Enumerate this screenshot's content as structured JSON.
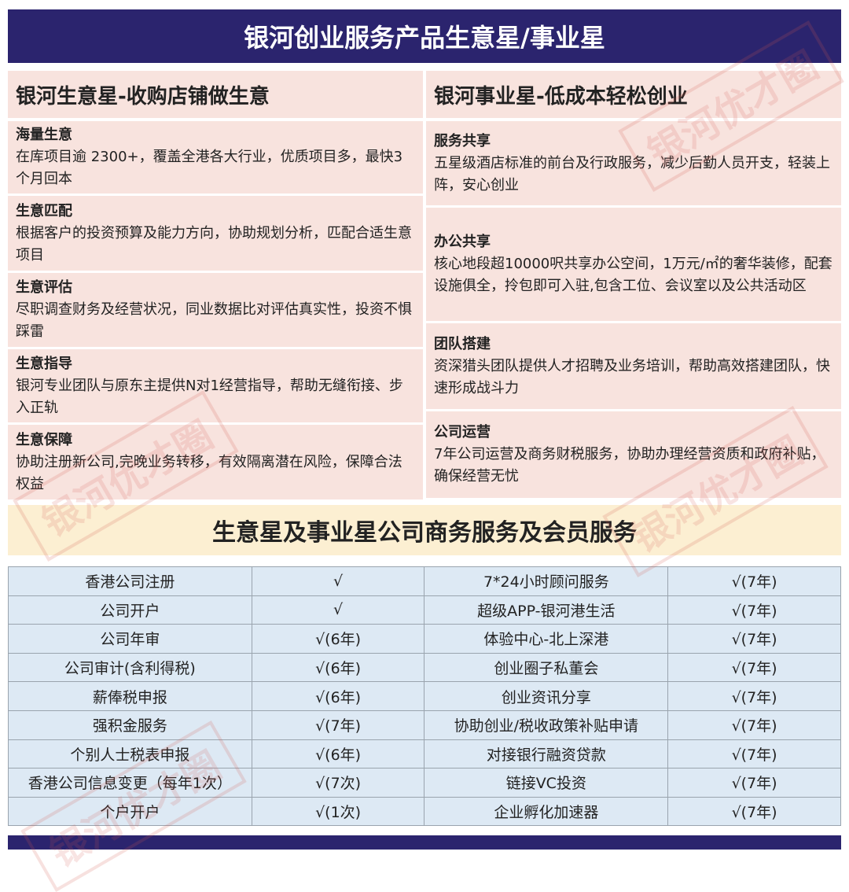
{
  "header": {
    "title": "银河创业服务产品生意星/事业星"
  },
  "left": {
    "title": "银河生意星-收购店铺做生意",
    "items": [
      {
        "title": "海量生意",
        "desc": "在库项目逾 2300+，覆盖全港各大行业，优质项目多，最快3个月回本"
      },
      {
        "title": "生意匹配",
        "desc": "根据客户的投资预算及能力方向，协助规划分析，匹配合适生意项目"
      },
      {
        "title": "生意评估",
        "desc": "尽职调查财务及经营状况，同业数据比对评估真实性，投资不惧踩雷"
      },
      {
        "title": "生意指导",
        "desc": "银河专业团队与原东主提供N对1经营指导，帮助无缝衔接、步入正轨"
      },
      {
        "title": "生意保障",
        "desc": "协助注册新公司,完晚业务转移，有效隔离潜在风险，保障合法权益"
      }
    ]
  },
  "right": {
    "title": "银河事业星-低成本轻松创业",
    "items": [
      {
        "title": "服务共享",
        "desc": "五星级酒店标准的前台及行政服务，减少后勤人员开支，轻装上阵，安心创业"
      },
      {
        "title": "办公共享",
        "desc": "核心地段超10000呎共享办公空间，1万元/㎡的奢华装修，配套设施俱全，拎包即可入驻,包含工位、会议室以及公共活动区"
      },
      {
        "title": "团队搭建",
        "desc": "资深猎头团队提供人才招聘及业务培训，帮助高效搭建团队，快速形成战斗力"
      },
      {
        "title": "公司运营",
        "desc": "7年公司运营及商务财税服务，协助办理经营资质和政府补贴，确保经营无忧"
      }
    ]
  },
  "band": {
    "title": "生意星及事业星公司商务服务及会员服务"
  },
  "table": {
    "rows": [
      [
        "香港公司注册",
        "√",
        "7*24小时顾问服务",
        "√(7年)"
      ],
      [
        "公司开户",
        "√",
        "超级APP-银河港生活",
        "√(7年)"
      ],
      [
        "公司年审",
        "√(6年)",
        "体验中心-北上深港",
        "√(7年)"
      ],
      [
        "公司审计(含利得税)",
        "√(6年)",
        "创业圈子私董会",
        "√(7年)"
      ],
      [
        "薪俸税申报",
        "√(6年)",
        "创业资讯分享",
        "√(7年)"
      ],
      [
        "强积金服务",
        "√(7年)",
        "协助创业/税收政策补贴申请",
        "√(7年)"
      ],
      [
        "个别人士税表申报",
        "√(6年)",
        "对接银行融资贷款",
        "√(7年)"
      ],
      [
        "香港公司信息变更（每年1次）",
        "√(7次)",
        "链接VC投资",
        "√(7年)"
      ],
      [
        "个户开户",
        "√(1次)",
        "企业孵化加速器",
        "√(7年)"
      ]
    ]
  },
  "watermark": "银河优才圈",
  "colors": {
    "navy": "#2b246e",
    "pink": "#f8e3de",
    "cream": "#fcefd2",
    "blue": "#dde9f4"
  }
}
